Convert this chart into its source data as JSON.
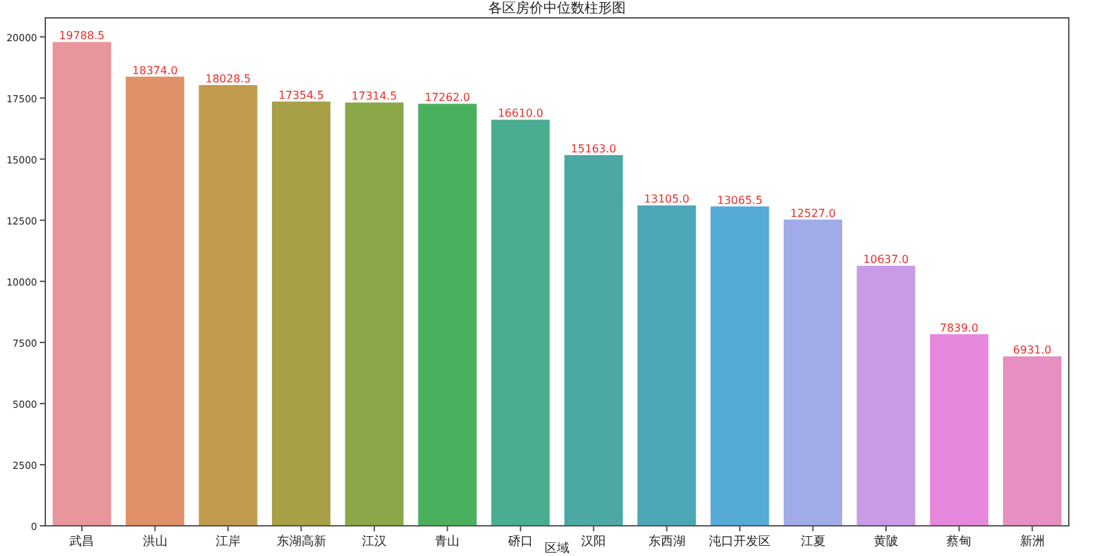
{
  "chart_data": {
    "type": "bar",
    "title": "各区房价中位数柱形图",
    "xlabel": "区域",
    "categories": [
      "武昌",
      "洪山",
      "江岸",
      "东湖高新",
      "江汉",
      "青山",
      "硚口",
      "汉阳",
      "东西湖",
      "沌口开发区",
      "江夏",
      "黄陂",
      "蔡甸",
      "新洲"
    ],
    "values": [
      19788.5,
      18374.0,
      18028.5,
      17354.5,
      17314.5,
      17262.0,
      16610.0,
      15163.0,
      13105.0,
      13065.5,
      12527.0,
      10637.0,
      7839.0,
      6931.0
    ],
    "value_labels": [
      "19788.5",
      "18374.0",
      "18028.5",
      "17354.5",
      "17314.5",
      "17262.0",
      "16610.0",
      "15163.0",
      "13105.0",
      "13065.5",
      "12527.0",
      "10637.0",
      "7839.0",
      "6931.0"
    ],
    "colors": [
      "#e8959c",
      "#e1916a",
      "#c09b4d",
      "#a7a046",
      "#8aa847",
      "#4bb05e",
      "#4aad92",
      "#4ba8a3",
      "#4ca6b6",
      "#55aad8",
      "#a1abe8",
      "#c99be6",
      "#e689dd",
      "#e68fc0"
    ],
    "ylim": [
      0,
      20778
    ],
    "yticks": [
      0,
      2500,
      5000,
      7500,
      10000,
      12500,
      15000,
      17500,
      20000
    ],
    "grid": false
  }
}
